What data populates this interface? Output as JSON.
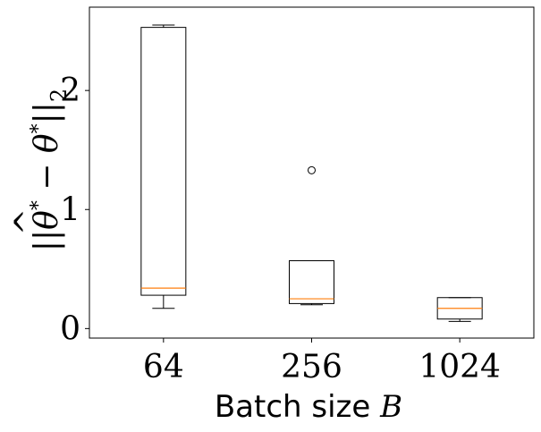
{
  "chart_data": {
    "type": "box",
    "categories": [
      "64",
      "256",
      "1024"
    ],
    "xlabel_text": "Batch size ",
    "xlabel_var": "B",
    "ylabel_pre": "||",
    "ylabel_theta_hat": "θ",
    "ylabel_hat": "^",
    "ylabel_star1": "*",
    "ylabel_minus": " − ",
    "ylabel_theta": "θ",
    "ylabel_star2": "*",
    "ylabel_post": "||",
    "ylabel_sub": "2",
    "yticks": [
      0,
      1,
      2
    ],
    "ylim": [
      -0.08,
      2.7
    ],
    "boxes": [
      {
        "category": "64",
        "whisker_low": 0.17,
        "q1": 0.28,
        "median": 0.34,
        "q3": 2.53,
        "whisker_high": 2.55,
        "outliers": []
      },
      {
        "category": "256",
        "whisker_low": 0.2,
        "q1": 0.21,
        "median": 0.25,
        "q3": 0.57,
        "whisker_high": 0.57,
        "outliers": [
          1.33
        ]
      },
      {
        "category": "1024",
        "whisker_low": 0.06,
        "q1": 0.08,
        "median": 0.17,
        "q3": 0.26,
        "whisker_high": 0.26,
        "outliers": []
      }
    ],
    "colors": {
      "box": "#000000",
      "median": "#ff7f0e",
      "outlier": "#000000"
    },
    "grid": false
  }
}
